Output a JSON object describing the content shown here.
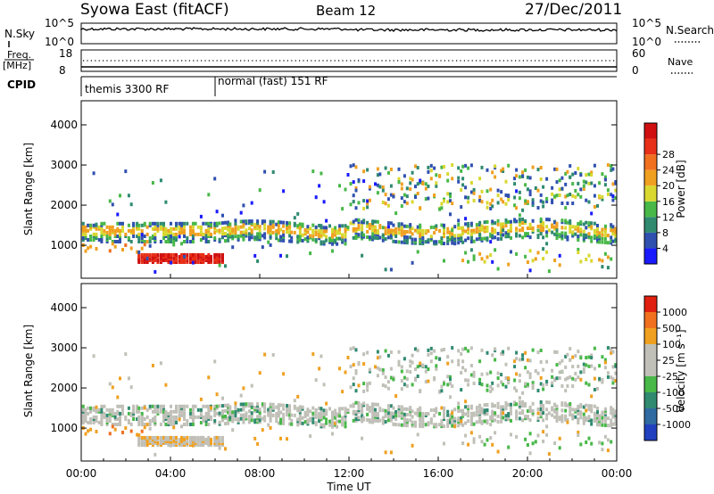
{
  "header": {
    "title": "Syowa East (fitACF)",
    "beam": "Beam 12",
    "date": "27/Dec/2011"
  },
  "top_panels": {
    "nsky_label": "N.Sky",
    "nsky_ticks": [
      "10^5",
      "10^0"
    ],
    "nsearch_label": "N.Search",
    "nsearch_ticks": [
      "10^5",
      "10^0"
    ],
    "freq_label_1": "Freq.",
    "freq_label_2": "[MHz]",
    "freq_ticks": [
      "18",
      "8"
    ],
    "nave_label": "Nave",
    "nave_ticks": [
      "60",
      "0"
    ],
    "cpid_label": "CPID",
    "cpid_segments": [
      {
        "label": "themis 3300 RF",
        "start_hour": 0,
        "end_hour": 6
      },
      {
        "label": "normal (fast) 151 RF",
        "start_hour": 6,
        "end_hour": 24
      }
    ]
  },
  "chart_data": [
    {
      "type": "heatmap",
      "name": "power",
      "ylabel": "Slant Range [km]",
      "yticks": [
        "1000",
        "2000",
        "3000",
        "4000"
      ],
      "ylim": [
        180,
        4600
      ],
      "xlim": [
        0,
        24
      ],
      "colorbar_label": "Power [dB]",
      "colorbar_ticks": [
        "4",
        "8",
        "12",
        "16",
        "20",
        "24",
        "28"
      ],
      "colorbar_colors": [
        "#1a1aff",
        "#3050b0",
        "#2f8a70",
        "#48b848",
        "#d8d830",
        "#f0a020",
        "#f07020",
        "#e83018",
        "#d01010"
      ],
      "bands": [
        {
          "t0": 2.5,
          "t1": 6.4,
          "r0": 560,
          "r1": 780,
          "value": "high"
        },
        {
          "t0": 0.0,
          "t1": 24,
          "r0": 1150,
          "r1": 1500,
          "value": "mid"
        }
      ]
    },
    {
      "type": "heatmap",
      "name": "velocity",
      "ylabel": "Slant Range [km]",
      "yticks": [
        "1000",
        "2000",
        "3000",
        "4000"
      ],
      "ylim": [
        180,
        4600
      ],
      "xlim": [
        0,
        24
      ],
      "colorbar_label": "Velocity [m s⁻¹]",
      "colorbar_ticks": [
        "1000",
        "500",
        "100",
        "25",
        "-25",
        "-100",
        "-500",
        "-1000"
      ],
      "colorbar_colors": [
        "#2040c0",
        "#2f6aa0",
        "#2f8a70",
        "#48b848",
        "#c0c0b8",
        "#c0c0b8",
        "#f0a020",
        "#f07020",
        "#e02010"
      ],
      "xlabel": "Time UT",
      "xticks": [
        "00:00",
        "04:00",
        "08:00",
        "12:00",
        "16:00",
        "20:00",
        "00:00"
      ]
    }
  ]
}
